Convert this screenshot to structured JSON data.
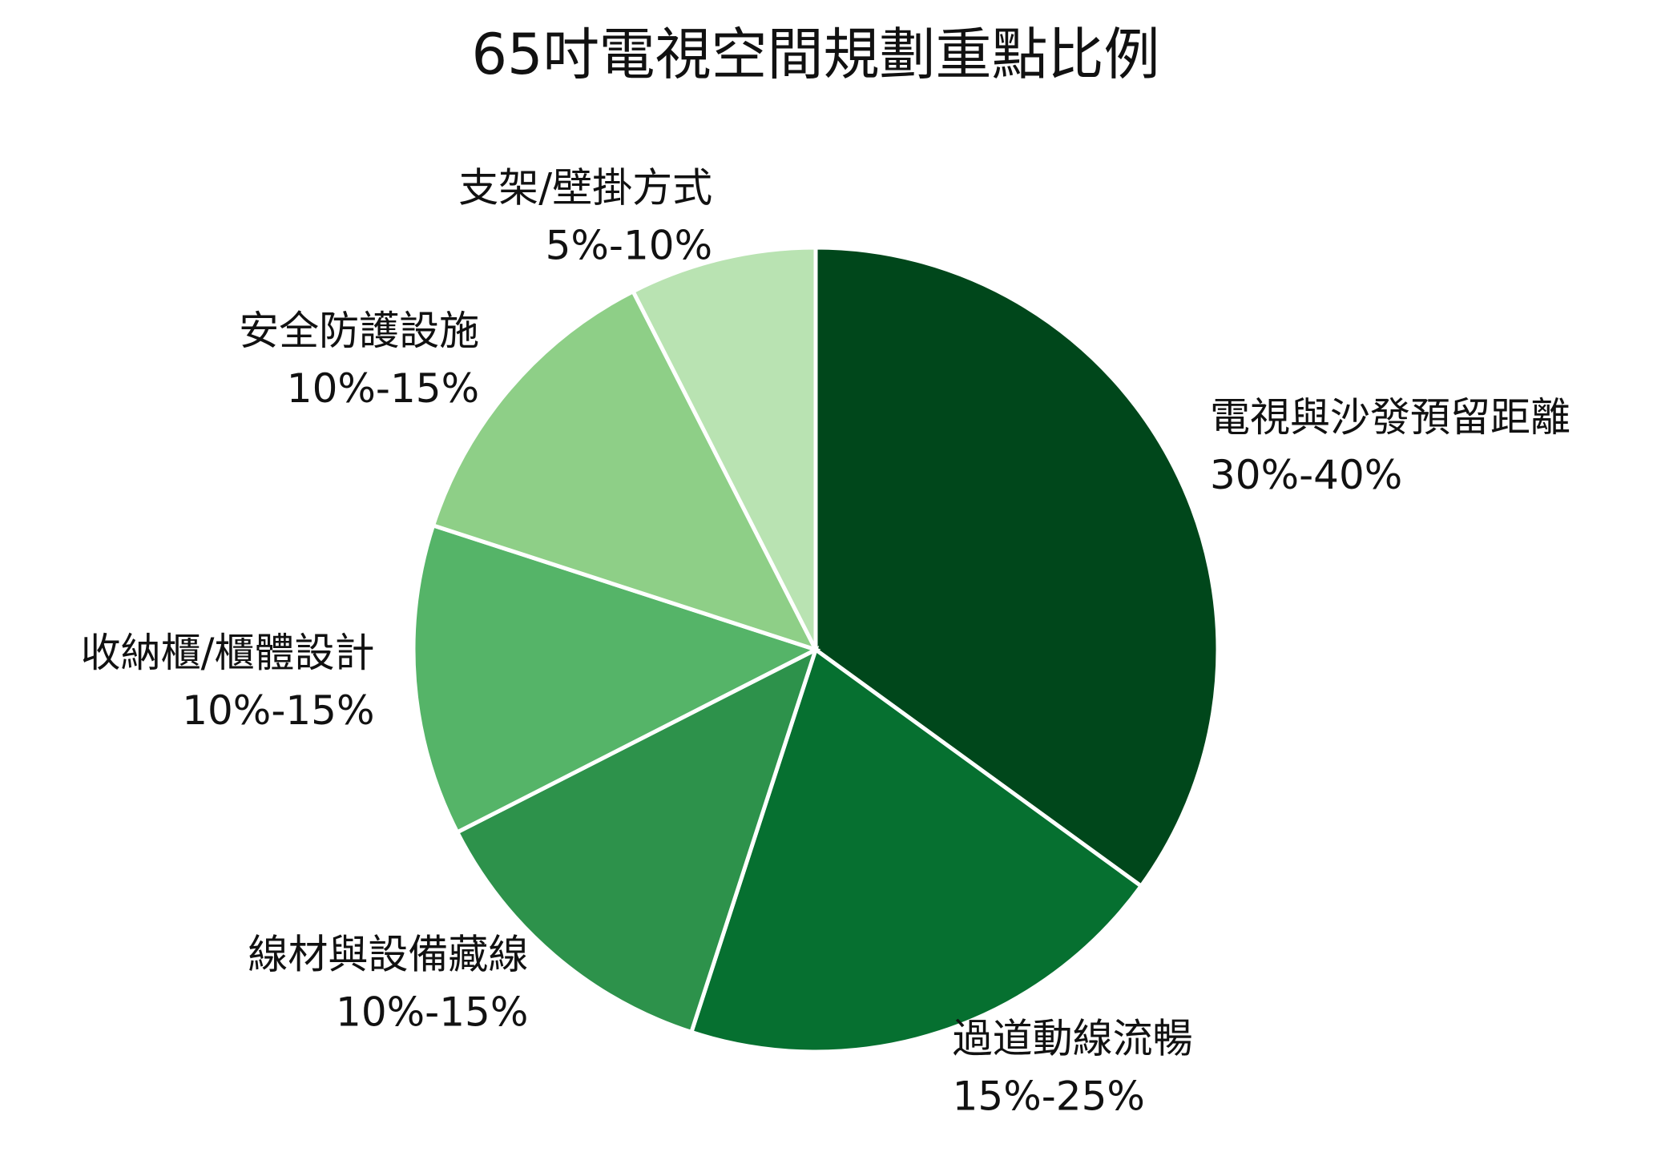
{
  "chart_data": {
    "type": "pie",
    "title": "65吋電視空間規劃重點比例",
    "categories": [
      "電視與沙發預留距離",
      "過道動線流暢",
      "線材與設備藏線",
      "收納櫃/櫃體設計",
      "安全防護設施",
      "支架/壁掛方式"
    ],
    "values": [
      35,
      20,
      12.5,
      12.5,
      12.5,
      7.5
    ],
    "value_labels": [
      "30%-40%",
      "15%-25%",
      "10%-15%",
      "10%-15%",
      "10%-15%",
      "5%-10%"
    ],
    "colors": [
      "#00471b",
      "#067030",
      "#2d924b",
      "#55b468",
      "#8ecf87",
      "#b9e3b2"
    ]
  }
}
